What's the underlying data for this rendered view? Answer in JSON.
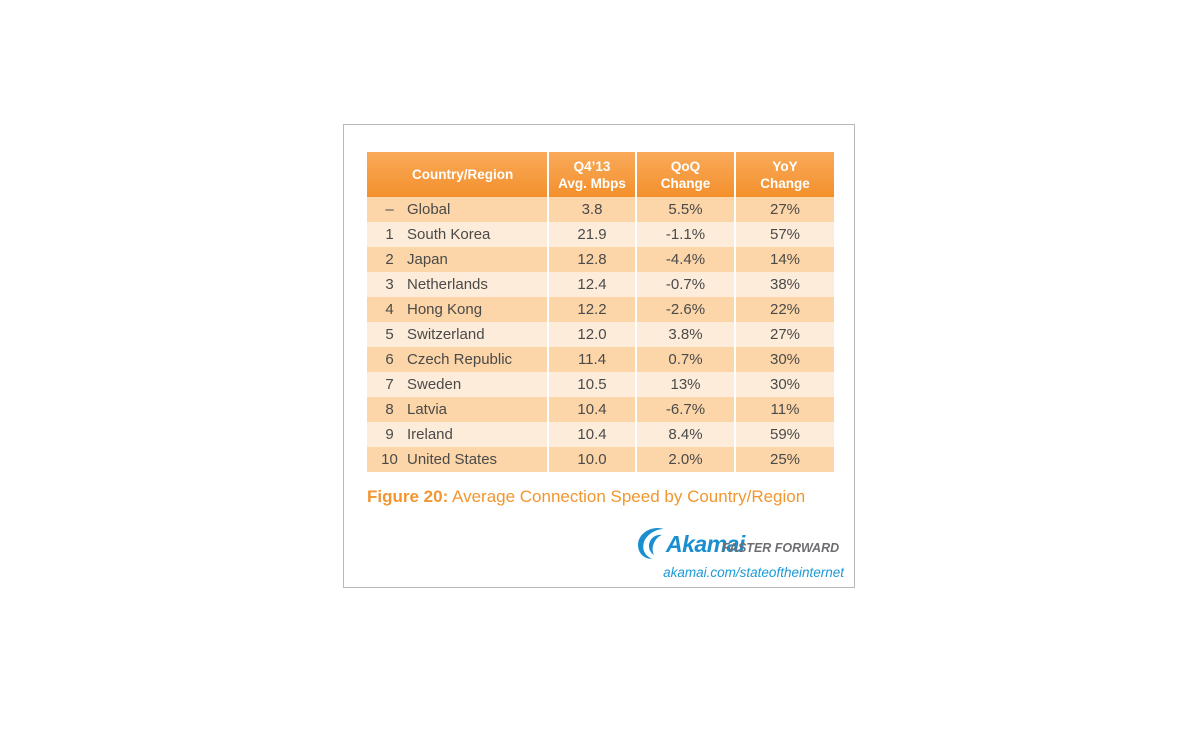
{
  "chart_data": {
    "type": "table",
    "columns": [
      "Country/Region",
      "Q4'13 Avg. Mbps",
      "QoQ Change",
      "YoY Change"
    ],
    "headers": {
      "country": "Country/Region",
      "speed_line1": "Q4’13",
      "speed_line2": "Avg. Mbps",
      "qoq_line1": "QoQ",
      "qoq_line2": "Change",
      "yoy_line1": "YoY",
      "yoy_line2": "Change"
    },
    "rows": [
      {
        "rank": "–",
        "country": "Global",
        "speed": "3.8",
        "qoq": "5.5%",
        "yoy": "27%"
      },
      {
        "rank": "1",
        "country": "South Korea",
        "speed": "21.9",
        "qoq": "-1.1%",
        "yoy": "57%"
      },
      {
        "rank": "2",
        "country": "Japan",
        "speed": "12.8",
        "qoq": "-4.4%",
        "yoy": "14%"
      },
      {
        "rank": "3",
        "country": "Netherlands",
        "speed": "12.4",
        "qoq": "-0.7%",
        "yoy": "38%"
      },
      {
        "rank": "4",
        "country": "Hong Kong",
        "speed": "12.2",
        "qoq": "-2.6%",
        "yoy": "22%"
      },
      {
        "rank": "5",
        "country": "Switzerland",
        "speed": "12.0",
        "qoq": "3.8%",
        "yoy": "27%"
      },
      {
        "rank": "6",
        "country": "Czech Republic",
        "speed": "11.4",
        "qoq": "0.7%",
        "yoy": "30%"
      },
      {
        "rank": "7",
        "country": "Sweden",
        "speed": "10.5",
        "qoq": "13%",
        "yoy": "30%"
      },
      {
        "rank": "8",
        "country": "Latvia",
        "speed": "10.4",
        "qoq": "-6.7%",
        "yoy": "11%"
      },
      {
        "rank": "9",
        "country": "Ireland",
        "speed": "10.4",
        "qoq": "8.4%",
        "yoy": "59%"
      },
      {
        "rank": "10",
        "country": "United States",
        "speed": "10.0",
        "qoq": "2.0%",
        "yoy": "25%"
      }
    ]
  },
  "caption": {
    "label": "Figure 20:",
    "text": "Average Connection Speed by Country/Region"
  },
  "brand": {
    "name": "Akamai",
    "tagline": "FASTER FORWARD",
    "url": "akamai.com/stateoftheinternet"
  },
  "colors": {
    "header": "#f3902c",
    "row_odd": "#fcd5a8",
    "row_even": "#fdecd9",
    "caption": "#f29630",
    "brand_blue": "#1a8fd0"
  },
  "icons": [
    "akamai-swoosh-icon"
  ]
}
